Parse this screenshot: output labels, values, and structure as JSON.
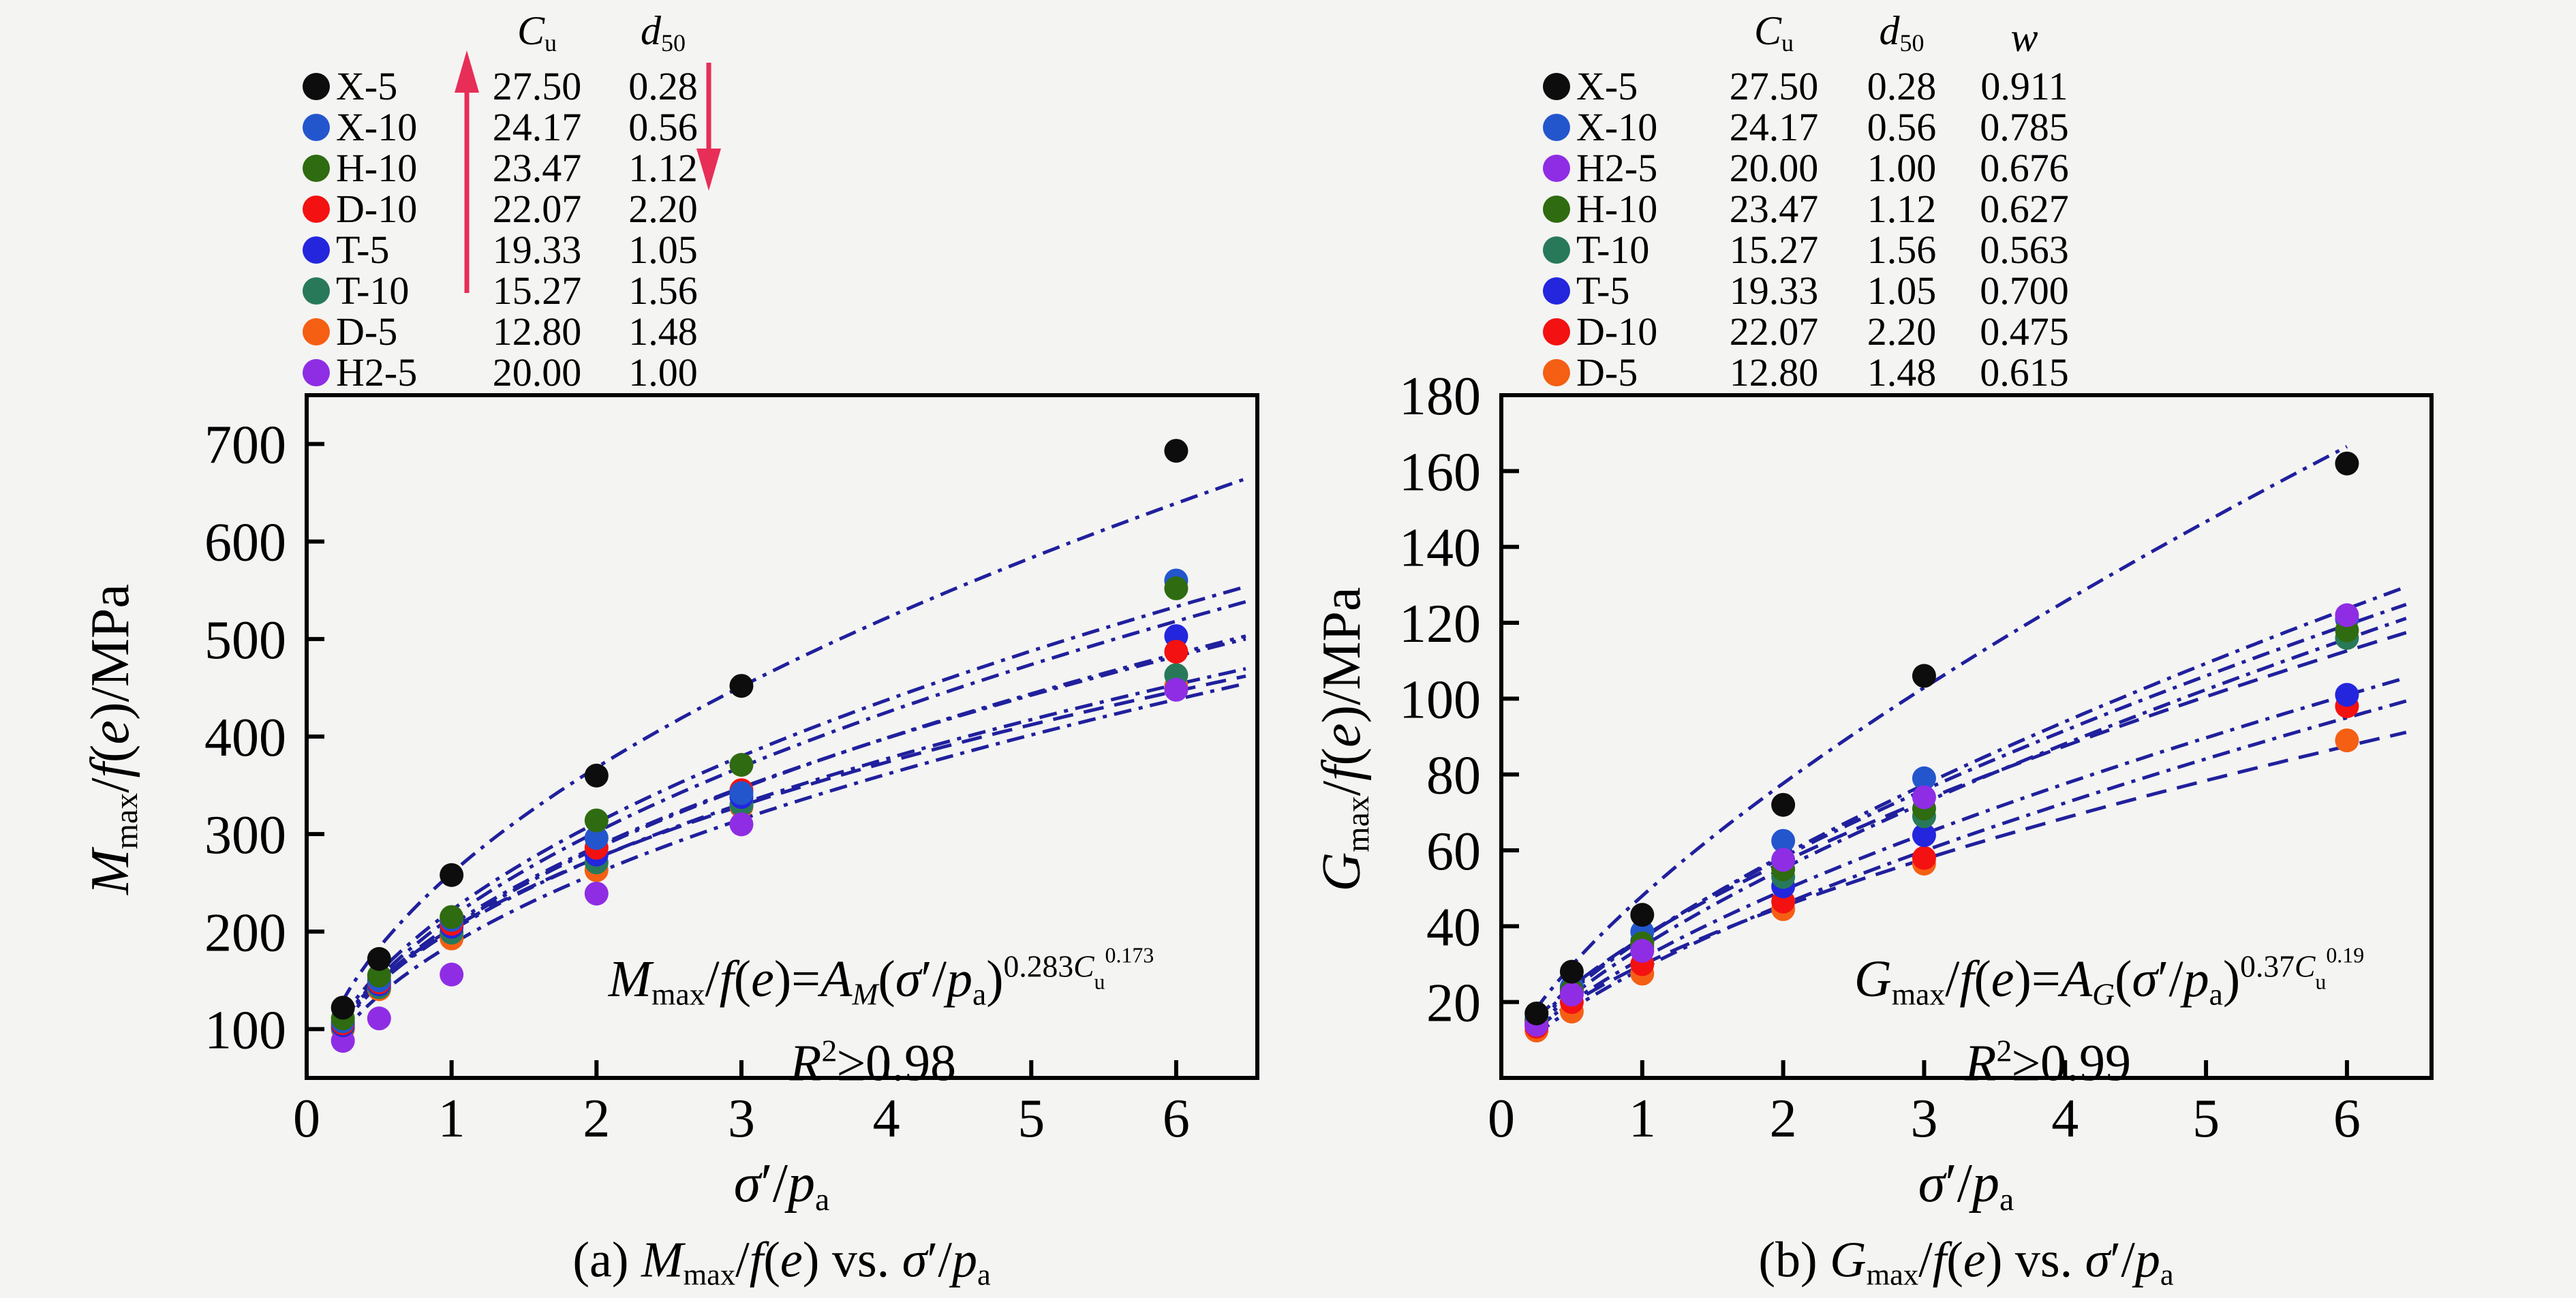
{
  "page": {
    "background": "#f4f4f3",
    "ink": "#000000",
    "curve_color": "#20209d",
    "arrow_color": "#e72e56"
  },
  "legend_left": {
    "headers": [
      {
        "id": "cu",
        "tokens": [
          [
            "C",
            "i"
          ],
          [
            "u",
            "sub"
          ]
        ]
      },
      {
        "id": "d50",
        "tokens": [
          [
            "d",
            "i"
          ],
          [
            "50",
            "sub"
          ]
        ]
      }
    ],
    "arrows": [
      {
        "icon": "up-arrow",
        "column": "cu"
      },
      {
        "icon": "down-arrow",
        "column": "d50"
      }
    ],
    "rows": [
      {
        "name": "X-5",
        "color": "#0d0d0d",
        "cu": "27.50",
        "d50": "0.28"
      },
      {
        "name": "X-10",
        "color": "#2356cd",
        "cu": "24.17",
        "d50": "0.56"
      },
      {
        "name": "H-10",
        "color": "#2f6b10",
        "cu": "23.47",
        "d50": "1.12"
      },
      {
        "name": "D-10",
        "color": "#f31111",
        "cu": "22.07",
        "d50": "2.20"
      },
      {
        "name": "T-5",
        "color": "#2326dd",
        "cu": "19.33",
        "d50": "1.05"
      },
      {
        "name": "T-10",
        "color": "#28795a",
        "cu": "15.27",
        "d50": "1.56"
      },
      {
        "name": "D-5",
        "color": "#f55f13",
        "cu": "12.80",
        "d50": "1.48"
      },
      {
        "name": "H2-5",
        "color": "#8f2de4",
        "cu": "20.00",
        "d50": "1.00"
      }
    ]
  },
  "legend_right": {
    "headers": [
      {
        "id": "cu",
        "tokens": [
          [
            "C",
            "i"
          ],
          [
            "u",
            "sub"
          ]
        ]
      },
      {
        "id": "d50",
        "tokens": [
          [
            "d",
            "i"
          ],
          [
            "50",
            "sub"
          ]
        ]
      },
      {
        "id": "w",
        "tokens": [
          [
            "w",
            "i"
          ]
        ]
      }
    ],
    "rows": [
      {
        "name": "X-5",
        "color": "#0d0d0d",
        "cu": "27.50",
        "d50": "0.28",
        "w": "0.911"
      },
      {
        "name": "X-10",
        "color": "#2356cd",
        "cu": "24.17",
        "d50": "0.56",
        "w": "0.785"
      },
      {
        "name": "H2-5",
        "color": "#8f2de4",
        "cu": "20.00",
        "d50": "1.00",
        "w": "0.676"
      },
      {
        "name": "H-10",
        "color": "#2f6b10",
        "cu": "23.47",
        "d50": "1.12",
        "w": "0.627"
      },
      {
        "name": "T-10",
        "color": "#28795a",
        "cu": "15.27",
        "d50": "1.56",
        "w": "0.563"
      },
      {
        "name": "T-5",
        "color": "#2326dd",
        "cu": "19.33",
        "d50": "1.05",
        "w": "0.700"
      },
      {
        "name": "D-10",
        "color": "#f31111",
        "cu": "22.07",
        "d50": "2.20",
        "w": "0.475"
      },
      {
        "name": "D-5",
        "color": "#f55f13",
        "cu": "12.80",
        "d50": "1.48",
        "w": "0.615"
      }
    ]
  },
  "chart_data": [
    {
      "id": "a",
      "type": "scatter",
      "caption_tokens": [
        [
          "(a) ",
          ""
        ],
        [
          "M",
          "i"
        ],
        [
          "max",
          "sub"
        ],
        [
          "/",
          ""
        ],
        [
          "f",
          "i"
        ],
        [
          "(",
          ""
        ],
        [
          "e",
          "i"
        ],
        [
          ")",
          ""
        ],
        [
          " vs. ",
          ""
        ],
        [
          "σ",
          "i"
        ],
        [
          "′",
          ""
        ],
        [
          "/",
          ""
        ],
        [
          "p",
          "i"
        ],
        [
          "a",
          "sub"
        ]
      ],
      "xlabel_tokens": [
        [
          "σ",
          "i"
        ],
        [
          "′",
          ""
        ],
        [
          "/",
          ""
        ],
        [
          "p",
          "i"
        ],
        [
          "a",
          "sub"
        ]
      ],
      "ylabel_tokens": [
        [
          "M",
          "i"
        ],
        [
          "max",
          "sub"
        ],
        [
          "/",
          ""
        ],
        [
          "f",
          "i"
        ],
        [
          "(",
          ""
        ],
        [
          "e",
          "i"
        ],
        [
          ")",
          ""
        ],
        [
          "/MPa",
          ""
        ]
      ],
      "equation_tokens": [
        [
          "M",
          "i"
        ],
        [
          "max",
          "sub"
        ],
        [
          "/",
          ""
        ],
        [
          "f",
          "i"
        ],
        [
          "(",
          ""
        ],
        [
          "e",
          "i"
        ],
        [
          ")",
          ""
        ],
        [
          "=",
          ""
        ],
        [
          "A",
          "i"
        ],
        [
          "M",
          "i sub"
        ],
        [
          "(",
          ""
        ],
        [
          "σ",
          "i"
        ],
        [
          "′",
          ""
        ],
        [
          "/",
          ""
        ],
        [
          "p",
          "i"
        ],
        [
          "a",
          "sub"
        ],
        [
          ")",
          ""
        ],
        [
          "0.283",
          "sup"
        ],
        [
          "C",
          "i sup"
        ],
        [
          "u",
          "supsub"
        ],
        [
          "0.173",
          "sup2"
        ]
      ],
      "r2_tokens": [
        [
          "R",
          "i"
        ],
        [
          "2",
          "sup"
        ],
        [
          "≥",
          ""
        ],
        [
          "0.98",
          ""
        ]
      ],
      "xlim": [
        0,
        6.56
      ],
      "ylim": [
        50,
        750
      ],
      "xticks": [
        0,
        1,
        2,
        3,
        4,
        5,
        6
      ],
      "yticks": [
        100,
        200,
        300,
        400,
        500,
        600,
        700
      ],
      "grid": false,
      "x": [
        0.25,
        0.5,
        1,
        2,
        3,
        6
      ],
      "series": [
        {
          "name": "D-5",
          "color": "#f55f13",
          "values": [
            100,
            141,
            193,
            263,
            328,
            452
          ],
          "fit": {
            "A": 203,
            "b": 0.44
          },
          "dash": "30 16",
          "curve_range": [
            0.24,
            6.5
          ]
        },
        {
          "name": "T-10",
          "color": "#28795a",
          "values": [
            102,
            143,
            199,
            271,
            330,
            463
          ],
          "fit": {
            "A": 201,
            "b": 0.454
          },
          "dash": "26 11 6 11",
          "curve_range": [
            0.24,
            6.5
          ]
        },
        {
          "name": "H2-5",
          "color": "#8f2de4",
          "values": [
            88,
            111,
            156,
            239,
            310,
            448
          ],
          "fit": {
            "A": 187,
            "b": 0.475
          },
          "dash": "26 11 6 11",
          "curve_range": [
            0.24,
            6.5
          ]
        },
        {
          "name": "T-5",
          "color": "#2326dd",
          "values": [
            104,
            146,
            205,
            279,
            338,
            503
          ],
          "fit": {
            "A": 207,
            "b": 0.472
          },
          "dash": "26 11 6 11",
          "curve_range": [
            0.24,
            6.5
          ]
        },
        {
          "name": "D-10",
          "color": "#f31111",
          "values": [
            106,
            148,
            208,
            286,
            345,
            487
          ],
          "fit": {
            "A": 204,
            "b": 0.483
          },
          "dash": "26 11 6 11",
          "curve_range": [
            0.24,
            6.5
          ]
        },
        {
          "name": "X-10",
          "color": "#2356cd",
          "values": [
            108,
            150,
            212,
            296,
            342,
            560
          ],
          "fit": {
            "A": 215,
            "b": 0.491
          },
          "dash": "26 11 6 11",
          "curve_range": [
            0.24,
            6.5
          ]
        },
        {
          "name": "H-10",
          "color": "#2f6b10",
          "values": [
            111,
            155,
            215,
            314,
            371,
            552
          ],
          "fit": {
            "A": 222,
            "b": 0.489
          },
          "dash": "26 11 6 11",
          "curve_range": [
            0.24,
            6.5
          ]
        },
        {
          "name": "X-5",
          "color": "#0d0d0d",
          "values": [
            122,
            172,
            258,
            360,
            452,
            693
          ],
          "fit": {
            "A": 260,
            "b": 0.502
          },
          "dash": "26 11 6 11",
          "curve_range": [
            0.24,
            6.5
          ]
        }
      ]
    },
    {
      "id": "b",
      "type": "scatter",
      "caption_tokens": [
        [
          "(b) ",
          ""
        ],
        [
          "G",
          "i"
        ],
        [
          "max",
          "sub"
        ],
        [
          "/",
          ""
        ],
        [
          "f",
          "i"
        ],
        [
          "(",
          ""
        ],
        [
          "e",
          "i"
        ],
        [
          ")",
          ""
        ],
        [
          " vs. ",
          ""
        ],
        [
          "σ",
          "i"
        ],
        [
          "′",
          ""
        ],
        [
          "/",
          ""
        ],
        [
          "p",
          "i"
        ],
        [
          "a",
          "sub"
        ]
      ],
      "xlabel_tokens": [
        [
          "σ",
          "i"
        ],
        [
          "′",
          ""
        ],
        [
          "/",
          ""
        ],
        [
          "p",
          "i"
        ],
        [
          "a",
          "sub"
        ]
      ],
      "ylabel_tokens": [
        [
          "G",
          "i"
        ],
        [
          "max",
          "sub"
        ],
        [
          "/",
          ""
        ],
        [
          "f",
          "i"
        ],
        [
          "(",
          ""
        ],
        [
          "e",
          "i"
        ],
        [
          ")",
          ""
        ],
        [
          "/MPa",
          ""
        ]
      ],
      "equation_tokens": [
        [
          "G",
          "i"
        ],
        [
          "max",
          "sub"
        ],
        [
          "/",
          ""
        ],
        [
          "f",
          "i"
        ],
        [
          "(",
          ""
        ],
        [
          "e",
          "i"
        ],
        [
          ")",
          ""
        ],
        [
          "=",
          ""
        ],
        [
          "A",
          "i"
        ],
        [
          "G",
          "i sub"
        ],
        [
          "(",
          ""
        ],
        [
          "σ",
          "i"
        ],
        [
          "′",
          ""
        ],
        [
          "/",
          ""
        ],
        [
          "p",
          "i"
        ],
        [
          "a",
          "sub"
        ],
        [
          ")",
          ""
        ],
        [
          "0.37",
          "sup"
        ],
        [
          "C",
          "i sup"
        ],
        [
          "u",
          "supsub"
        ],
        [
          "0.19",
          "sup2"
        ]
      ],
      "r2_tokens": [
        [
          "R",
          "i"
        ],
        [
          "2",
          "sup"
        ],
        [
          "≥",
          ""
        ],
        [
          "0.99",
          ""
        ]
      ],
      "xlim": [
        0,
        6.6
      ],
      "ylim": [
        0,
        180
      ],
      "xticks": [
        0,
        1,
        2,
        3,
        4,
        5,
        6
      ],
      "yticks": [
        20,
        40,
        60,
        80,
        100,
        120,
        140,
        160,
        180
      ],
      "grid": false,
      "x": [
        0.25,
        0.5,
        1,
        2,
        3,
        6
      ],
      "series": [
        {
          "name": "D-5",
          "color": "#f55f13",
          "values": [
            12.5,
            17.5,
            27.5,
            44.5,
            56.5,
            89
          ],
          "fit": {
            "A": 29.8,
            "b": 0.601
          },
          "dash": "30 16",
          "curve_range": [
            0.24,
            6.45
          ]
        },
        {
          "name": "D-10",
          "color": "#f31111",
          "values": [
            13.5,
            20,
            30,
            46.5,
            58,
            98
          ],
          "fit": {
            "A": 28.8,
            "b": 0.666
          },
          "dash": "26 11 6 11",
          "curve_range": [
            0.24,
            6.45
          ]
        },
        {
          "name": "T-5",
          "color": "#2326dd",
          "values": [
            15.2,
            23.5,
            36,
            50.5,
            64,
            101
          ],
          "fit": {
            "A": 31.5,
            "b": 0.65
          },
          "dash": "26 11 6 11",
          "curve_range": [
            0.24,
            6.45
          ]
        },
        {
          "name": "T-10",
          "color": "#28795a",
          "values": [
            14.5,
            22.5,
            34.5,
            53,
            69,
            116
          ],
          "fit": {
            "A": 37,
            "b": 0.621
          },
          "dash": "30 16",
          "curve_range": [
            0.24,
            6.45
          ]
        },
        {
          "name": "X-10",
          "color": "#2356cd",
          "values": [
            15.5,
            24,
            38.5,
            62.5,
            79,
            121
          ],
          "fit": {
            "A": 36.7,
            "b": 0.678
          },
          "dash": "26 11 6 11",
          "curve_range": [
            0.24,
            6.45
          ]
        },
        {
          "name": "H-10",
          "color": "#2f6b10",
          "values": [
            15,
            23,
            35.5,
            55,
            71,
            118
          ],
          "fit": {
            "A": 34.6,
            "b": 0.674
          },
          "dash": "26 11 6 11",
          "curve_range": [
            0.24,
            6.45
          ]
        },
        {
          "name": "H2-5",
          "color": "#8f2de4",
          "values": [
            14,
            22,
            33.5,
            57.5,
            74,
            122
          ],
          "fit": {
            "A": 37,
            "b": 0.654
          },
          "dash": "26 11 6 11",
          "curve_range": [
            0.24,
            6.45
          ]
        },
        {
          "name": "X-5",
          "color": "#0d0d0d",
          "values": [
            17,
            28,
            43,
            72,
            106,
            162
          ],
          "fit": {
            "A": 48,
            "b": 0.694
          },
          "dash": "26 11 6 11",
          "curve_range": [
            0.24,
            6.0
          ]
        }
      ]
    }
  ]
}
